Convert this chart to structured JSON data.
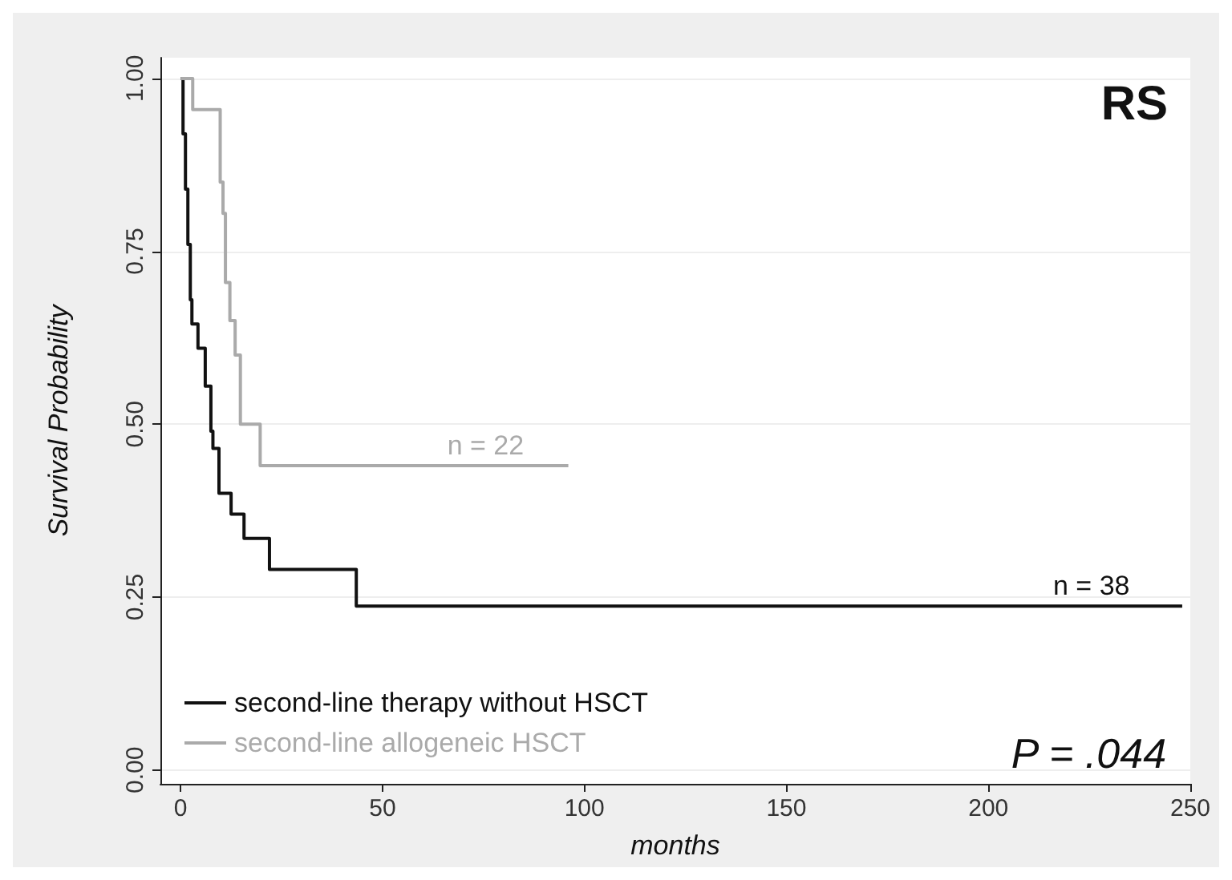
{
  "chart_data": {
    "type": "step",
    "xlabel": "months",
    "ylabel": "Survival Probability",
    "xlim": [
      -5,
      250
    ],
    "xticks": [
      0,
      50,
      100,
      150,
      200,
      250
    ],
    "ylim": [
      -0.02,
      1.03
    ],
    "yticks": [
      {
        "value": 0,
        "label": "0.00"
      },
      {
        "value": 0.25,
        "label": "0.25"
      },
      {
        "value": 0.5,
        "label": "0.50"
      },
      {
        "value": 0.75,
        "label": "0.75"
      },
      {
        "value": 1,
        "label": "1.00"
      }
    ],
    "grid": "y",
    "legend": "bottom left",
    "line_style": "solid",
    "marker": "none",
    "series": [
      {
        "name": "second-line therapy without HSCT",
        "color": "#111111",
        "x": [
          0,
          0.6,
          1.2,
          1.8,
          2.4,
          2.8,
          4.3,
          6.1,
          7.5,
          8,
          9.5,
          12.5,
          15.7,
          22,
          43.5,
          248
        ],
        "values": [
          1,
          0.92,
          0.84,
          0.76,
          0.68,
          0.645,
          0.61,
          0.555,
          0.49,
          0.465,
          0.4,
          0.37,
          0.335,
          0.29,
          0.237,
          0.237
        ]
      },
      {
        "name": "second-line allogeneic HSCT",
        "color": "#aaaaaa",
        "x": [
          0,
          3,
          9.8,
          10.5,
          11.1,
          12.2,
          13.5,
          14.8,
          19.7,
          96
        ],
        "values": [
          1,
          0.955,
          0.85,
          0.805,
          0.705,
          0.65,
          0.6,
          0.5,
          0.44,
          0.44
        ]
      }
    ],
    "annotations": [
      "RS",
      "P = .044",
      {
        "text": "n = 22",
        "x": 85,
        "y": 0.44
      },
      {
        "text": "n = 38",
        "x": 235,
        "y": 0.237
      }
    ]
  }
}
